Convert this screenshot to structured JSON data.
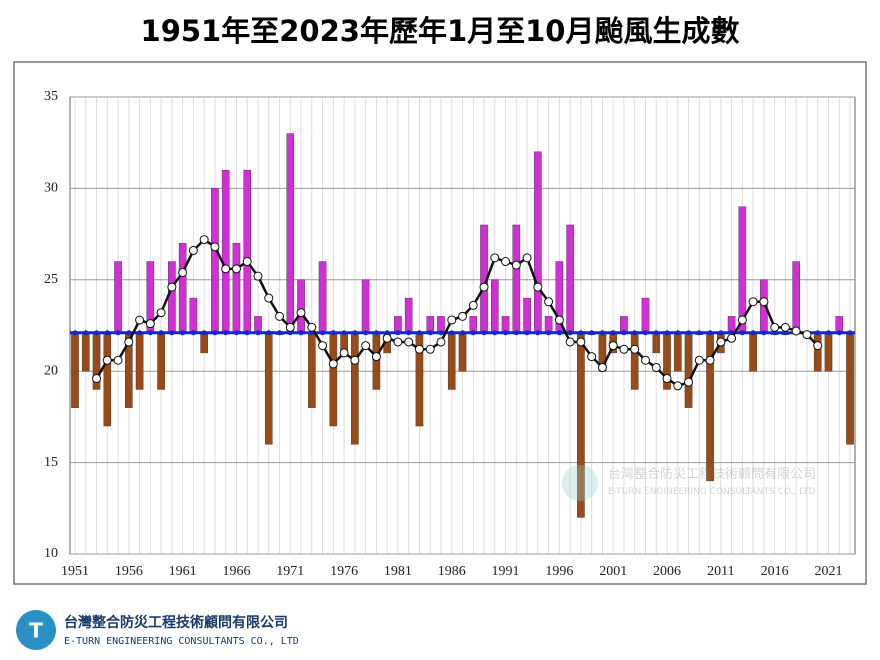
{
  "chart_data": {
    "type": "bar",
    "title": "1951年至2023年歷年1月至10月颱風生成數",
    "categories": [
      "1951",
      null,
      null,
      null,
      null,
      "1956",
      null,
      null,
      null,
      null,
      "1961",
      null,
      null,
      null,
      null,
      "1966",
      null,
      null,
      null,
      null,
      "1971",
      null,
      null,
      null,
      null,
      "1976",
      null,
      null,
      null,
      null,
      "1981",
      null,
      null,
      null,
      null,
      "1986",
      null,
      null,
      null,
      null,
      "1991",
      null,
      null,
      null,
      null,
      "1996",
      null,
      null,
      null,
      null,
      "2001",
      null,
      null,
      null,
      null,
      "2006",
      null,
      null,
      null,
      null,
      "2011",
      null,
      null,
      null,
      null,
      "2016",
      null,
      null,
      null,
      null,
      "2021",
      null,
      null
    ],
    "values": [
      18,
      20,
      19,
      17,
      26,
      18,
      19,
      26,
      19,
      26,
      27,
      24,
      21,
      30,
      31,
      27,
      31,
      23,
      16,
      22,
      33,
      25,
      18,
      26,
      17,
      21,
      16,
      25,
      19,
      21,
      23,
      24,
      17,
      23,
      23,
      19,
      20,
      23,
      28,
      25,
      23,
      28,
      24,
      32,
      23,
      26,
      28,
      12,
      22,
      20,
      21,
      23,
      19,
      24,
      21,
      19,
      20,
      18,
      22,
      14,
      21,
      23,
      29,
      20,
      25,
      22,
      22,
      26,
      22,
      20,
      20,
      23,
      16
    ],
    "moving_average": [
      null,
      null,
      19.6,
      20.6,
      20.6,
      21.6,
      22.8,
      22.6,
      23.2,
      24.6,
      25.4,
      26.6,
      27.2,
      26.8,
      25.6,
      25.6,
      26,
      25.2,
      24,
      23,
      22.4,
      23.2,
      22.4,
      21.4,
      20.4,
      21,
      20.6,
      21.4,
      20.8,
      21.8,
      21.6,
      21.6,
      21.2,
      21.2,
      21.6,
      22.8,
      23,
      23.6,
      24.6,
      26.2,
      26,
      25.8,
      26.2,
      24.6,
      23.8,
      22.8,
      21.6,
      21.6,
      20.8,
      20.2,
      21.4,
      21.2,
      21.2,
      20.6,
      20.2,
      19.6,
      19.2,
      19.4,
      20.6,
      20.6,
      21.6,
      21.8,
      22.8,
      23.8,
      23.8,
      22.4,
      22.4,
      22.2,
      22,
      21.4,
      null,
      null,
      null
    ],
    "mean": 22.1,
    "colors": {
      "above": "#d22fd6",
      "below": "#9a4a16",
      "mean": "#1428c8",
      "moving_average": "#111111"
    },
    "ylim": [
      10,
      35
    ],
    "yticks": [
      10,
      15,
      20,
      25,
      30,
      35
    ],
    "grid": true
  },
  "footer": {
    "company": "台灣整合防災工程技術顧問有限公司",
    "company_en": "E-TURN ENGINEERING CONSULTANTS CO., LTD"
  }
}
